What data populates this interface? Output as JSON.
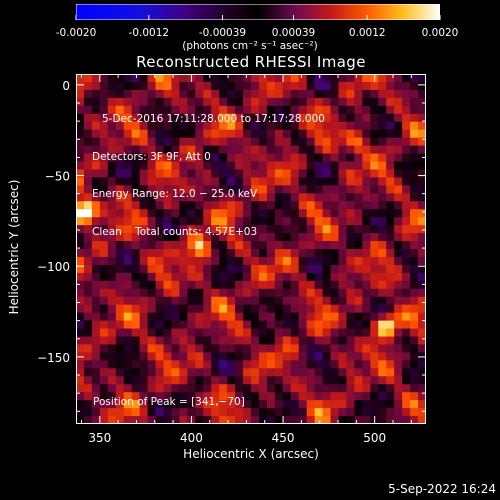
{
  "colorbar": {
    "tick_labels": [
      "-0.0020",
      "-0.0012",
      "-0.00039",
      "0.00039",
      "0.0012",
      "0.0020"
    ],
    "tick_values": [
      -0.002,
      -0.0012,
      -0.00039,
      0.00039,
      0.0012,
      0.002
    ],
    "unit_label": "(photons cm⁻² s⁻¹ asec⁻²)",
    "range": [
      -0.002,
      0.002
    ]
  },
  "chart_data": {
    "type": "heatmap",
    "title": "Reconstructed RHESSI Image",
    "xlabel": "Heliocentric X (arcsec)",
    "ylabel": "Heliocentric Y (arcsec)",
    "xlim": [
      337,
      528
    ],
    "ylim": [
      -187,
      6
    ],
    "x_ticks": [
      350,
      400,
      450,
      500
    ],
    "x_tick_labels": [
      "350",
      "400",
      "450",
      "500"
    ],
    "y_ticks": [
      0,
      -50,
      -100,
      -150
    ],
    "y_tick_labels": [
      "0",
      "−50",
      "−100",
      "−150"
    ],
    "annotations": [
      "5-Dec-2016 17:11:28.000 to 17:17:28.000",
      "Detectors: 3F 9F, Att 0",
      "Energy Range: 12.0 − 25.0 keV",
      "Clean    Total counts: 4.57E+03"
    ],
    "peak_label": "Position of Peak = [341,−70]",
    "peak_position": [
      341,
      -70
    ],
    "bright_sources": [
      {
        "x": 341,
        "y": -70,
        "intensity": 0.002
      },
      {
        "x": 507,
        "y": -132,
        "intensity": 0.0017
      },
      {
        "x": 405,
        "y": -90,
        "intensity": 0.0012
      },
      {
        "x": 490,
        "y": -32,
        "intensity": 0.001
      }
    ]
  },
  "footer": {
    "timestamp": "5-Sep-2022 16:24"
  }
}
